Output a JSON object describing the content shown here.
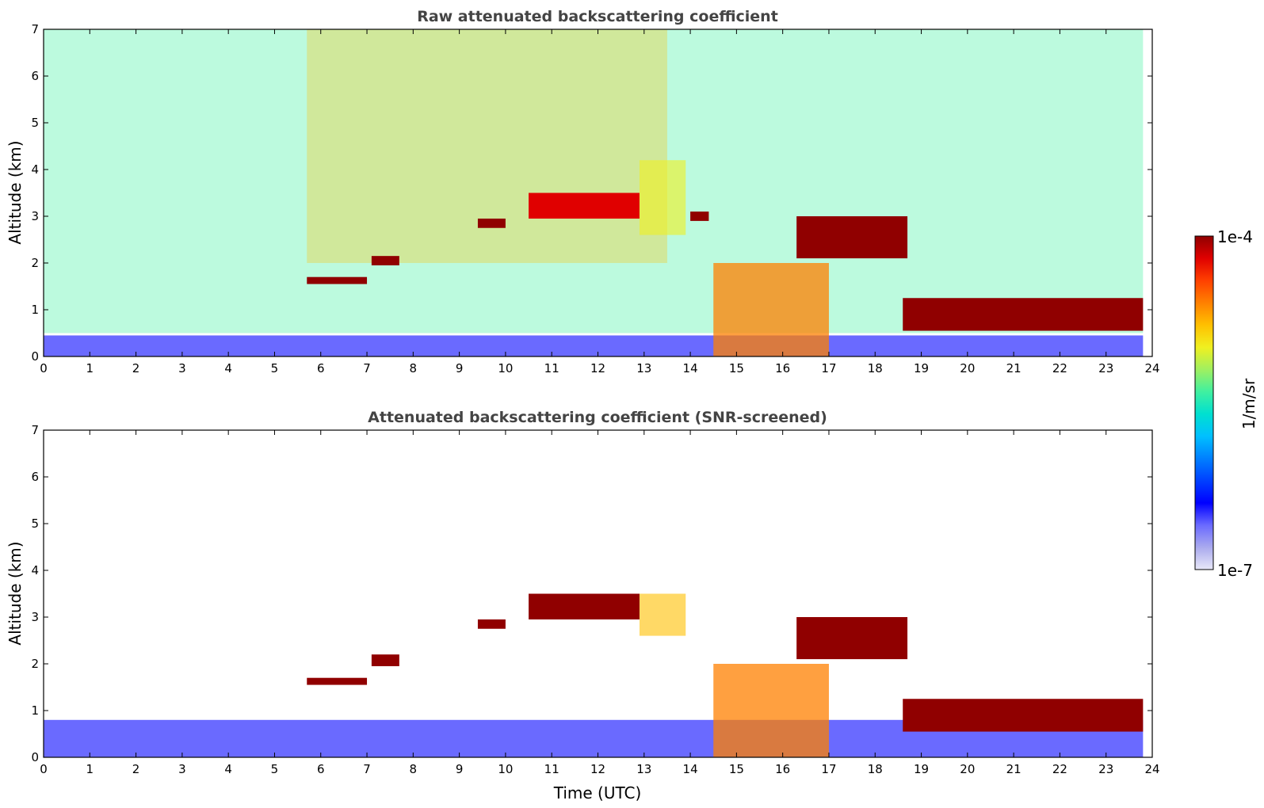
{
  "chart_data": [
    {
      "type": "heatmap",
      "title": "Raw attenuated backscattering coefficient",
      "xlabel": "",
      "ylabel": "Altitude (km)",
      "xlim": [
        0,
        24
      ],
      "ylim": [
        0,
        7
      ],
      "xticks": [
        "0",
        "1",
        "2",
        "3",
        "4",
        "5",
        "6",
        "7",
        "8",
        "9",
        "10",
        "11",
        "12",
        "13",
        "14",
        "15",
        "16",
        "17",
        "18",
        "19",
        "20",
        "21",
        "22",
        "23",
        "24"
      ],
      "yticks": [
        "0",
        "1",
        "2",
        "3",
        "4",
        "5",
        "6",
        "7"
      ],
      "layers": [
        {
          "name": "surface",
          "x": [
            0,
            23.8
          ],
          "y": [
            0,
            0.45
          ],
          "level": 0.15
        },
        {
          "name": "noise",
          "x": [
            0,
            23.8
          ],
          "y": [
            0.5,
            7
          ],
          "level": 0.5
        },
        {
          "name": "high-noise",
          "x": [
            5.7,
            13.5
          ],
          "y": [
            2.0,
            7
          ],
          "level": 0.75
        },
        {
          "name": "cloud",
          "x": [
            5.7,
            7.0
          ],
          "y": [
            1.55,
            1.7
          ],
          "level": 1.0
        },
        {
          "name": "cloud",
          "x": [
            7.1,
            7.7
          ],
          "y": [
            1.95,
            2.15
          ],
          "level": 1.0
        },
        {
          "name": "cloud",
          "x": [
            9.4,
            10.0
          ],
          "y": [
            2.75,
            2.95
          ],
          "level": 1.0
        },
        {
          "name": "cloud",
          "x": [
            10.5,
            12.9
          ],
          "y": [
            2.95,
            3.5
          ],
          "level": 0.95
        },
        {
          "name": "virga",
          "x": [
            12.9,
            13.9
          ],
          "y": [
            2.6,
            4.2
          ],
          "level": 0.65
        },
        {
          "name": "cloud",
          "x": [
            14.0,
            14.4
          ],
          "y": [
            2.9,
            3.1
          ],
          "level": 1.0
        },
        {
          "name": "precip",
          "x": [
            14.5,
            17.0
          ],
          "y": [
            0,
            2.0
          ],
          "level": 0.8
        },
        {
          "name": "cloud",
          "x": [
            16.3,
            18.7
          ],
          "y": [
            2.1,
            3.0
          ],
          "level": 1.0
        },
        {
          "name": "cloud",
          "x": [
            18.6,
            23.8
          ],
          "y": [
            0.55,
            1.25
          ],
          "level": 1.0
        }
      ]
    },
    {
      "type": "heatmap",
      "title": "Attenuated backscattering coefficient (SNR-screened)",
      "xlabel": "Time (UTC)",
      "ylabel": "Altitude (km)",
      "xlim": [
        0,
        24
      ],
      "ylim": [
        0,
        7
      ],
      "xticks": [
        "0",
        "1",
        "2",
        "3",
        "4",
        "5",
        "6",
        "7",
        "8",
        "9",
        "10",
        "11",
        "12",
        "13",
        "14",
        "15",
        "16",
        "17",
        "18",
        "19",
        "20",
        "21",
        "22",
        "23",
        "24"
      ],
      "yticks": [
        "0",
        "1",
        "2",
        "3",
        "4",
        "5",
        "6",
        "7"
      ],
      "layers": [
        {
          "name": "boundary-layer",
          "x": [
            0,
            23.8
          ],
          "y": [
            0,
            0.8
          ],
          "level": 0.15
        },
        {
          "name": "cloud",
          "x": [
            5.7,
            7.0
          ],
          "y": [
            1.55,
            1.7
          ],
          "level": 1.0
        },
        {
          "name": "cloud",
          "x": [
            7.1,
            7.7
          ],
          "y": [
            1.95,
            2.2
          ],
          "level": 1.0
        },
        {
          "name": "cloud",
          "x": [
            9.4,
            10.0
          ],
          "y": [
            2.75,
            2.95
          ],
          "level": 1.0
        },
        {
          "name": "cloud",
          "x": [
            10.5,
            12.9
          ],
          "y": [
            2.95,
            3.5
          ],
          "level": 1.0
        },
        {
          "name": "virga",
          "x": [
            12.9,
            13.9
          ],
          "y": [
            2.6,
            3.5
          ],
          "level": 0.7
        },
        {
          "name": "precip",
          "x": [
            14.5,
            17.0
          ],
          "y": [
            0,
            2.0
          ],
          "level": 0.8
        },
        {
          "name": "cloud",
          "x": [
            16.3,
            18.7
          ],
          "y": [
            2.1,
            3.0
          ],
          "level": 1.0
        },
        {
          "name": "cloud",
          "x": [
            18.6,
            23.8
          ],
          "y": [
            0.55,
            1.25
          ],
          "level": 1.0
        }
      ]
    }
  ],
  "colorbar": {
    "max_label": "1e-4",
    "min_label": "1e-7",
    "unit_label": "1/m/sr",
    "colors": [
      "#e8e8f8",
      "#aaaaee",
      "#6a6aff",
      "#0000ff",
      "#0040ff",
      "#0080ff",
      "#00c0ff",
      "#00e0d0",
      "#40f0a0",
      "#a0f060",
      "#f0f020",
      "#ffc000",
      "#ff8000",
      "#ff4000",
      "#e00000",
      "#900000"
    ]
  }
}
